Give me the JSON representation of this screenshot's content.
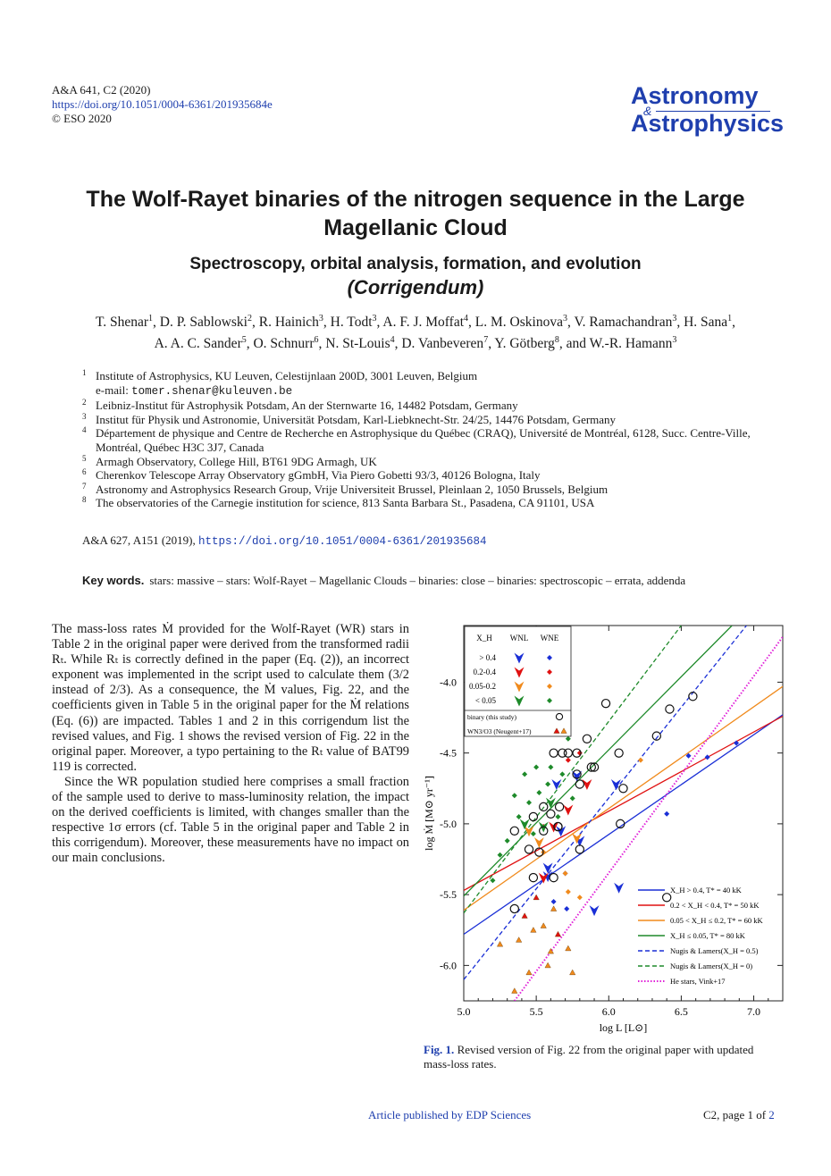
{
  "header": {
    "journal_ref": "A&A 641, C2 (2020)",
    "doi": "https://doi.org/10.1051/0004-6361/201935684e",
    "copyright": "© ESO 2020",
    "logo_word1": "Astronomy",
    "logo_amp": "&",
    "logo_word2": "Astrophysics"
  },
  "title": {
    "line1": "The Wolf-Rayet binaries of the nitrogen sequence in the Large",
    "line2": "Magellanic Cloud",
    "subtitle": "Spectroscopy, orbital analysis, formation, and evolution",
    "corrigendum": "(Corrigendum)"
  },
  "authors": [
    {
      "name": "T. Shenar",
      "aff": "1"
    },
    {
      "name": "D. P. Sablowski",
      "aff": "2"
    },
    {
      "name": "R. Hainich",
      "aff": "3"
    },
    {
      "name": "H. Todt",
      "aff": "3"
    },
    {
      "name": "A. F. J. Moffat",
      "aff": "4"
    },
    {
      "name": "L. M. Oskinova",
      "aff": "3"
    },
    {
      "name": "V. Ramachandran",
      "aff": "3"
    },
    {
      "name": "H. Sana",
      "aff": "1"
    },
    {
      "name": "A. A. C. Sander",
      "aff": "5"
    },
    {
      "name": "O. Schnurr",
      "aff": "6"
    },
    {
      "name": "N. St-Louis",
      "aff": "4"
    },
    {
      "name": "D. Vanbeveren",
      "aff": "7"
    },
    {
      "name": "Y. Götberg",
      "aff": "8"
    },
    {
      "name": "W.-R. Hamann",
      "aff": "3"
    }
  ],
  "affiliations": [
    {
      "num": "1",
      "text": "Institute of Astrophysics, KU Leuven, Celestijnlaan 200D, 3001 Leuven, Belgium",
      "email_prefix": "e-mail: ",
      "email": "tomer.shenar@kuleuven.be"
    },
    {
      "num": "2",
      "text": "Leibniz-Institut für Astrophysik Potsdam, An der Sternwarte 16, 14482 Potsdam, Germany"
    },
    {
      "num": "3",
      "text": "Institut für Physik und Astronomie, Universität Potsdam, Karl-Liebknecht-Str. 24/25, 14476 Potsdam, Germany"
    },
    {
      "num": "4",
      "text": "Département de physique and Centre de Recherche en Astrophysique du Québec (CRAQ), Université de Montréal, 6128, Succ. Centre-Ville, Montréal, Québec H3C 3J7, Canada"
    },
    {
      "num": "5",
      "text": "Armagh Observatory, College Hill, BT61 9DG Armagh, UK"
    },
    {
      "num": "6",
      "text": "Cherenkov Telescope Array Observatory gGmbH, Via Piero Gobetti 93/3, 40126 Bologna, Italy"
    },
    {
      "num": "7",
      "text": "Astronomy and Astrophysics Research Group, Vrije Universiteit Brussel, Pleinlaan 2, 1050 Brussels, Belgium"
    },
    {
      "num": "8",
      "text": "The observatories of the Carnegie institution for science, 813 Santa Barbara St., Pasadena, CA 91101, USA"
    }
  ],
  "citation": {
    "ref": "A&A 627, A151 (2019), ",
    "doi": "https://doi.org/10.1051/0004-6361/201935684"
  },
  "keywords": {
    "label": "Key words.",
    "text": "stars: massive – stars: Wolf-Rayet – Magellanic Clouds – binaries: close – binaries: spectroscopic – errata, addenda"
  },
  "body": {
    "p1": "The mass-loss rates Ṁ provided for the Wolf-Rayet (WR) stars in Table 2 in the original paper were derived from the transformed radii Rₜ. While Rₜ is correctly defined in the paper (Eq. (2)), an incorrect exponent was implemented in the script used to calculate them (3/2 instead of 2/3). As a consequence, the Ṁ values, Fig. 22, and the coefficients given in Table 5 in the original paper for the Ṁ relations (Eq. (6)) are impacted. Tables 1 and 2 in this corrigendum list the revised values, and Fig. 1 shows the revised version of Fig. 22 in the original paper. Moreover, a typo pertaining to the Rₜ value of BAT99 119 is corrected.",
    "p2": "Since the WR population studied here comprises a small fraction of the sample used to derive to mass-luminosity relation, the impact on the derived coefficients is limited, with changes smaller than the respective 1σ errors (cf. Table 5 in the original paper and Table 2 in this corrigendum). Moreover, these measurements have no impact on our main conclusions."
  },
  "figure": {
    "caption_label": "Fig. 1.",
    "caption_text": " Revised version of Fig. 22 from the original paper with updated mass-loss rates."
  },
  "chart_data": {
    "type": "scatter",
    "xlabel": "log L  [L⊙]",
    "ylabel": "log Ṁ [M⊙ yr⁻¹]",
    "xlim": [
      5.0,
      7.2
    ],
    "ylim": [
      -6.25,
      -3.6
    ],
    "xticks": [
      5.0,
      5.5,
      6.0,
      6.5,
      7.0
    ],
    "xtick_labels": [
      "5.0",
      "5.5",
      "6.0",
      "6.5",
      "7.0"
    ],
    "yticks": [
      -6.0,
      -5.5,
      -5.0,
      -4.5,
      -4.0
    ],
    "ytick_labels": [
      "-6.0",
      "-5.5",
      "-5.0",
      "-4.5",
      "-4.0"
    ],
    "legend_placement": "top-left",
    "symbol_legend": {
      "header": [
        "X_H",
        "WNL",
        "WNE"
      ],
      "rows": [
        {
          "label": "> 0.4",
          "color": "#1a2fd6"
        },
        {
          "label": "0.2-0.4",
          "color": "#e01010"
        },
        {
          "label": "0.05-0.2",
          "color": "#f08a1c"
        },
        {
          "label": "< 0.05",
          "color": "#1e8a2a"
        }
      ],
      "binary_label": "binary (this study)",
      "wn3_label": "WN3/O3 (Neugent+17)"
    },
    "lines": [
      {
        "name": "X_H > 0.4, T* = 40 kK",
        "color": "#1a2fd6",
        "dash": "solid",
        "x": [
          5.0,
          7.2
        ],
        "y": [
          -5.78,
          -4.23
        ]
      },
      {
        "name": "0.2 < X_H < 0.4, T* = 50 kK",
        "color": "#e01010",
        "dash": "solid",
        "x": [
          5.0,
          7.2
        ],
        "y": [
          -5.47,
          -4.24
        ]
      },
      {
        "name": "0.05 < X_H ≤ 0.2, T* = 60 kK",
        "color": "#f08a1c",
        "dash": "solid",
        "x": [
          5.0,
          7.2
        ],
        "y": [
          -5.61,
          -4.03
        ]
      },
      {
        "name": "X_H ≤ 0.05, T* = 80 kK",
        "color": "#1e8a2a",
        "dash": "solid",
        "x": [
          5.0,
          6.85
        ],
        "y": [
          -5.51,
          -3.6
        ]
      },
      {
        "name": "Nugis & Lamers(X_H = 0.5)",
        "color": "#1a2fd6",
        "dash": "dashed",
        "x": [
          5.0,
          6.95
        ],
        "y": [
          -6.1,
          -3.6
        ]
      },
      {
        "name": "Nugis & Lamers(X_H = 0)",
        "color": "#1e8a2a",
        "dash": "dashed",
        "x": [
          5.0,
          6.5
        ],
        "y": [
          -5.63,
          -3.6
        ]
      },
      {
        "name": "He stars, Vink+17",
        "color": "#e020d8",
        "dash": "dotted",
        "x": [
          5.35,
          7.2
        ],
        "y": [
          -6.25,
          -3.68
        ]
      }
    ],
    "wnl_points": [
      {
        "x": 5.67,
        "y": -5.05,
        "color": "#1a2fd6"
      },
      {
        "x": 5.8,
        "y": -5.12,
        "color": "#1a2fd6"
      },
      {
        "x": 5.64,
        "y": -4.72,
        "color": "#1a2fd6"
      },
      {
        "x": 5.78,
        "y": -4.66,
        "color": "#1a2fd6"
      },
      {
        "x": 5.58,
        "y": -5.31,
        "color": "#1a2fd6"
      },
      {
        "x": 6.07,
        "y": -5.45,
        "color": "#1a2fd6"
      },
      {
        "x": 5.9,
        "y": -5.61,
        "color": "#1a2fd6"
      },
      {
        "x": 6.05,
        "y": -4.72,
        "color": "#1a2fd6"
      },
      {
        "x": 5.58,
        "y": -5.37,
        "color": "#1a2fd6"
      },
      {
        "x": 5.72,
        "y": -4.9,
        "color": "#e01010"
      },
      {
        "x": 5.85,
        "y": -4.72,
        "color": "#e01010"
      },
      {
        "x": 5.55,
        "y": -5.38,
        "color": "#e01010"
      },
      {
        "x": 5.62,
        "y": -5.02,
        "color": "#e01010"
      },
      {
        "x": 5.45,
        "y": -5.05,
        "color": "#f08a1c"
      },
      {
        "x": 5.52,
        "y": -5.13,
        "color": "#f08a1c"
      },
      {
        "x": 5.78,
        "y": -5.1,
        "color": "#f08a1c"
      },
      {
        "x": 5.55,
        "y": -5.02,
        "color": "#1e8a2a"
      },
      {
        "x": 5.6,
        "y": -4.85,
        "color": "#1e8a2a"
      },
      {
        "x": 5.42,
        "y": -5.0,
        "color": "#1e8a2a"
      }
    ],
    "wne_points": [
      {
        "x": 6.88,
        "y": -4.43,
        "color": "#1a2fd6"
      },
      {
        "x": 6.68,
        "y": -4.53,
        "color": "#1a2fd6"
      },
      {
        "x": 6.55,
        "y": -4.52,
        "color": "#1a2fd6"
      },
      {
        "x": 6.4,
        "y": -4.93,
        "color": "#1a2fd6"
      },
      {
        "x": 5.62,
        "y": -5.55,
        "color": "#1a2fd6"
      },
      {
        "x": 5.71,
        "y": -5.6,
        "color": "#1a2fd6"
      },
      {
        "x": 5.7,
        "y": -5.35,
        "color": "#1a2fd6"
      },
      {
        "x": 5.72,
        "y": -4.55,
        "color": "#e01010"
      },
      {
        "x": 5.55,
        "y": -5.02,
        "color": "#e01010"
      },
      {
        "x": 5.8,
        "y": -4.5,
        "color": "#e01010"
      },
      {
        "x": 5.55,
        "y": -5.2,
        "color": "#f08a1c"
      },
      {
        "x": 5.7,
        "y": -5.35,
        "color": "#f08a1c"
      },
      {
        "x": 5.8,
        "y": -5.52,
        "color": "#f08a1c"
      },
      {
        "x": 6.22,
        "y": -4.55,
        "color": "#f08a1c"
      },
      {
        "x": 5.72,
        "y": -5.48,
        "color": "#f08a1c"
      },
      {
        "x": 5.68,
        "y": -4.18,
        "color": "#1e8a2a"
      },
      {
        "x": 5.62,
        "y": -4.34,
        "color": "#1e8a2a"
      },
      {
        "x": 5.72,
        "y": -4.4,
        "color": "#1e8a2a"
      },
      {
        "x": 5.5,
        "y": -4.6,
        "color": "#1e8a2a"
      },
      {
        "x": 5.42,
        "y": -4.65,
        "color": "#1e8a2a"
      },
      {
        "x": 5.52,
        "y": -4.78,
        "color": "#1e8a2a"
      },
      {
        "x": 5.45,
        "y": -4.85,
        "color": "#1e8a2a"
      },
      {
        "x": 5.38,
        "y": -4.95,
        "color": "#1e8a2a"
      },
      {
        "x": 5.35,
        "y": -4.8,
        "color": "#1e8a2a"
      },
      {
        "x": 5.58,
        "y": -4.72,
        "color": "#1e8a2a"
      },
      {
        "x": 5.48,
        "y": -5.07,
        "color": "#1e8a2a"
      },
      {
        "x": 5.3,
        "y": -5.12,
        "color": "#1e8a2a"
      },
      {
        "x": 5.65,
        "y": -4.95,
        "color": "#1e8a2a"
      },
      {
        "x": 5.25,
        "y": -5.22,
        "color": "#1e8a2a"
      },
      {
        "x": 5.6,
        "y": -4.6,
        "color": "#1e8a2a"
      },
      {
        "x": 5.75,
        "y": -4.82,
        "color": "#1e8a2a"
      },
      {
        "x": 5.2,
        "y": -5.4,
        "color": "#1e8a2a"
      },
      {
        "x": 5.68,
        "y": -4.65,
        "color": "#1e8a2a"
      }
    ],
    "binary_points": [
      {
        "x": 5.35,
        "y": -5.05
      },
      {
        "x": 5.48,
        "y": -4.95
      },
      {
        "x": 5.55,
        "y": -4.88
      },
      {
        "x": 5.6,
        "y": -4.93
      },
      {
        "x": 5.66,
        "y": -4.88
      },
      {
        "x": 5.72,
        "y": -4.5
      },
      {
        "x": 5.68,
        "y": -4.5
      },
      {
        "x": 5.62,
        "y": -4.5
      },
      {
        "x": 5.78,
        "y": -4.5
      },
      {
        "x": 5.85,
        "y": -4.4
      },
      {
        "x": 5.98,
        "y": -4.15
      },
      {
        "x": 5.88,
        "y": -4.6
      },
      {
        "x": 5.8,
        "y": -4.72
      },
      {
        "x": 5.78,
        "y": -4.65
      },
      {
        "x": 5.55,
        "y": -5.05
      },
      {
        "x": 5.65,
        "y": -5.02
      },
      {
        "x": 5.52,
        "y": -5.2
      },
      {
        "x": 5.45,
        "y": -5.18
      },
      {
        "x": 5.35,
        "y": -5.6
      },
      {
        "x": 5.48,
        "y": -5.38
      },
      {
        "x": 5.62,
        "y": -5.38
      },
      {
        "x": 6.07,
        "y": -4.5
      },
      {
        "x": 6.1,
        "y": -4.75
      },
      {
        "x": 6.08,
        "y": -5.0
      },
      {
        "x": 6.42,
        "y": -4.19
      },
      {
        "x": 5.8,
        "y": -5.18
      },
      {
        "x": 5.9,
        "y": -4.6
      },
      {
        "x": 5.65,
        "y": -5.02
      },
      {
        "x": 6.33,
        "y": -4.38
      },
      {
        "x": 6.4,
        "y": -5.52
      },
      {
        "x": 6.58,
        "y": -4.1
      }
    ],
    "wn3_points": [
      {
        "x": 5.25,
        "y": -5.85,
        "color": "#f08a1c"
      },
      {
        "x": 5.38,
        "y": -5.82,
        "color": "#f08a1c"
      },
      {
        "x": 5.48,
        "y": -5.75,
        "color": "#f08a1c"
      },
      {
        "x": 5.55,
        "y": -5.72,
        "color": "#f08a1c"
      },
      {
        "x": 5.6,
        "y": -5.9,
        "color": "#f08a1c"
      },
      {
        "x": 5.72,
        "y": -5.88,
        "color": "#f08a1c"
      },
      {
        "x": 5.45,
        "y": -6.05,
        "color": "#f08a1c"
      },
      {
        "x": 5.58,
        "y": -6.0,
        "color": "#f08a1c"
      },
      {
        "x": 5.35,
        "y": -6.18,
        "color": "#f08a1c"
      },
      {
        "x": 5.42,
        "y": -5.65,
        "color": "#e01010"
      },
      {
        "x": 5.65,
        "y": -5.78,
        "color": "#e01010"
      },
      {
        "x": 5.5,
        "y": -5.52,
        "color": "#e01010"
      },
      {
        "x": 5.75,
        "y": -6.05,
        "color": "#f08a1c"
      },
      {
        "x": 5.62,
        "y": -5.6,
        "color": "#f08a1c"
      }
    ]
  },
  "footer": {
    "center": "Article published by EDP Sciences",
    "right_prefix": "C2, page 1 of ",
    "right_total": "2"
  }
}
